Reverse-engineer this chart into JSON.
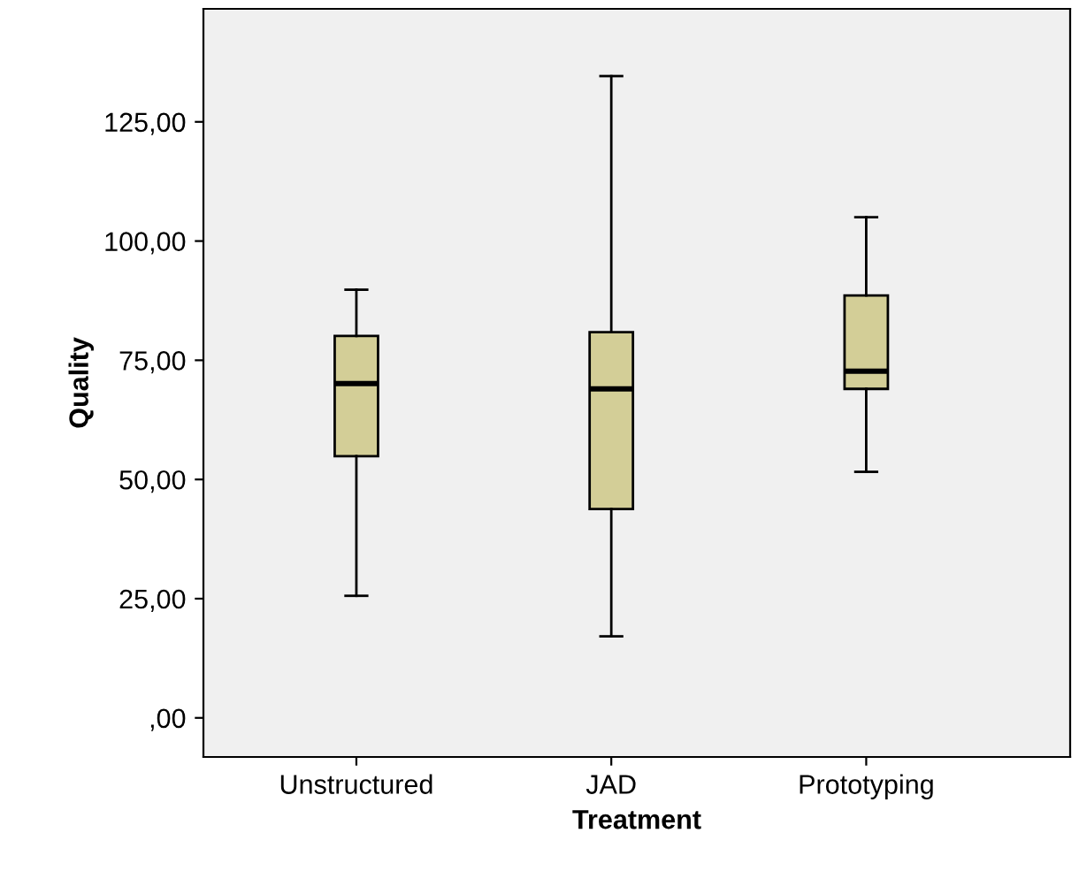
{
  "chart_data": {
    "type": "box",
    "xlabel": "Treatment",
    "ylabel": "Quality",
    "categories": [
      "Unstructured",
      "JAD",
      "Prototyping"
    ],
    "boxes": [
      {
        "low": 25.6,
        "q1": 54.9,
        "median": 70.1,
        "q3": 80.1,
        "high": 89.8
      },
      {
        "low": 17.1,
        "q1": 43.8,
        "median": 69.0,
        "q3": 80.9,
        "high": 134.6
      },
      {
        "low": 51.6,
        "q1": 69.0,
        "median": 72.7,
        "q3": 88.6,
        "high": 105.0
      }
    ],
    "color": "#d3ce97",
    "ylim": [
      -8.2,
      148.7
    ],
    "yticks": [
      {
        "value": 0,
        "label": ",00"
      },
      {
        "value": 25,
        "label": "25,00"
      },
      {
        "value": 50,
        "label": "50,00"
      },
      {
        "value": 75,
        "label": "75,00"
      },
      {
        "value": 100,
        "label": "100,00"
      },
      {
        "value": 125,
        "label": "125,00"
      }
    ],
    "grid": false
  }
}
